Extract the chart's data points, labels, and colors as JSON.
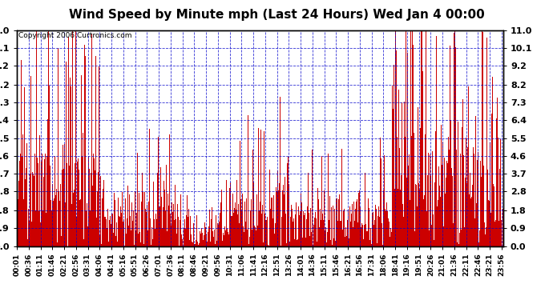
{
  "title": "Wind Speed by Minute mph (Last 24 Hours) Wed Jan 4 00:00",
  "copyright": "Copyright 2006 Curtronics.com",
  "yticks": [
    0.0,
    0.9,
    1.8,
    2.8,
    3.7,
    4.6,
    5.5,
    6.4,
    7.3,
    8.2,
    9.2,
    10.1,
    11.0
  ],
  "ylim": [
    0.0,
    11.0
  ],
  "background_color": "#ffffff",
  "bar_color": "#cc0000",
  "grid_color": "#0000cc",
  "title_fontsize": 11,
  "copyright_fontsize": 6.5,
  "ytick_fontsize": 8,
  "xtick_fontsize": 6.5,
  "xtick_labels": [
    "00:01",
    "00:36",
    "01:11",
    "01:46",
    "02:21",
    "02:56",
    "03:31",
    "04:06",
    "04:41",
    "05:16",
    "05:51",
    "06:26",
    "07:01",
    "07:36",
    "08:11",
    "08:46",
    "09:21",
    "09:56",
    "10:31",
    "11:06",
    "11:41",
    "12:16",
    "12:51",
    "13:26",
    "14:01",
    "14:36",
    "15:11",
    "15:46",
    "16:21",
    "16:56",
    "17:31",
    "18:06",
    "18:41",
    "19:16",
    "19:51",
    "20:26",
    "21:01",
    "21:36",
    "22:11",
    "22:46",
    "23:21",
    "23:56"
  ]
}
